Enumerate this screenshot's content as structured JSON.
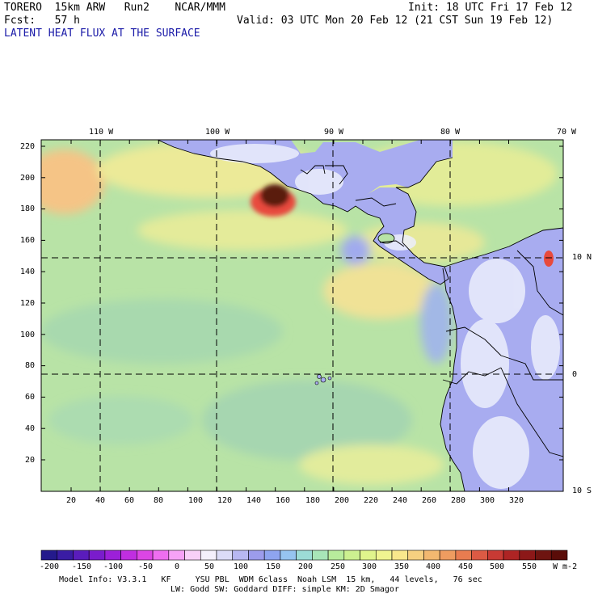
{
  "header": {
    "model_line": "TORERO  15km ARW   Run2    NCAR/MMM",
    "init": "Init: 18 UTC Fri 17 Feb 12",
    "fcst": "Fcst:   57 h",
    "valid": "Valid: 03 UTC Mon 20 Feb 12 (21 CST Sun 19 Feb 12)",
    "field_title": "LATENT HEAT FLUX AT THE SURFACE"
  },
  "map": {
    "top_lon_labels": [
      "110 W",
      "100 W",
      "90 W",
      "80 W",
      "70 W"
    ],
    "right_lat_labels": [
      "10 N",
      "0",
      "10 S"
    ],
    "left_grid_labels": [
      "220",
      "200",
      "180",
      "160",
      "140",
      "120",
      "100",
      "80",
      "60",
      "40",
      "20"
    ],
    "bottom_grid_labels": [
      "20",
      "40",
      "60",
      "80",
      "100",
      "120",
      "140",
      "160",
      "180",
      "200",
      "220",
      "240",
      "260",
      "280",
      "300",
      "320"
    ],
    "colors": {
      "ocean_base": "#b8e3a6",
      "land": "#a8acf0",
      "land_light": "#eceefc",
      "high_flux": "#f0d888",
      "max_flux": "#5a1f10",
      "grid_line": "#000000"
    }
  },
  "colorbar": {
    "ticks": [
      "-200",
      "-150",
      "-100",
      "-50",
      "0",
      "50",
      "100",
      "150",
      "200",
      "250",
      "300",
      "350",
      "400",
      "450",
      "500",
      "550"
    ],
    "unit": "W m-2",
    "colors": [
      "#241a8c",
      "#3a1ca4",
      "#5a1cbc",
      "#7a1ccc",
      "#9c20d8",
      "#c02ee0",
      "#dc46e4",
      "#ee6ef0",
      "#f6a2f6",
      "#f8d0f8",
      "#f4f0fc",
      "#dcdcf8",
      "#b8b8f2",
      "#9c9cec",
      "#8ea4f0",
      "#96c4f0",
      "#9cdcd6",
      "#a8e6b8",
      "#b8ec9c",
      "#ccf090",
      "#e0f48c",
      "#f0f490",
      "#f8e88c",
      "#f6d080",
      "#f2b870",
      "#ee9c60",
      "#e87c50",
      "#dc5a44",
      "#c83a34",
      "#ae2424",
      "#8c1818",
      "#6e1410",
      "#5a0c08"
    ]
  },
  "footer": {
    "line1": "Model Info: V3.3.1   KF     YSU PBL  WDM 6class  Noah LSM  15 km,   44 levels,   76 sec",
    "line2": "LW: Godd SW: Goddard DIFF: simple KM: 2D Smagor"
  }
}
